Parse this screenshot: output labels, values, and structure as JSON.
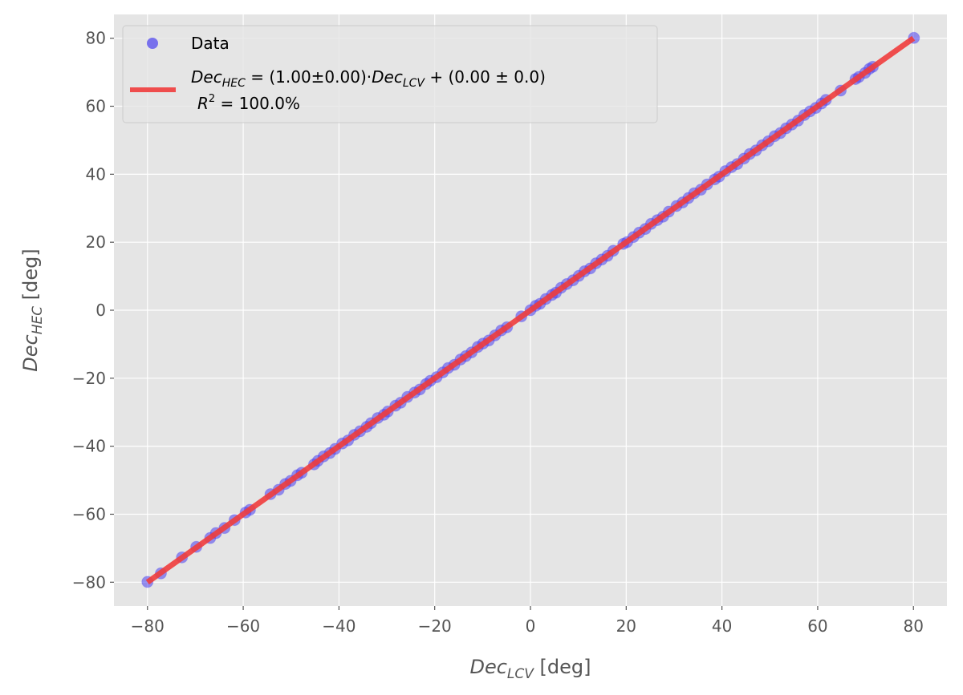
{
  "chart_data": {
    "type": "scatter",
    "xlabel": {
      "var": "Dec",
      "sub": "LCV",
      "unit": "[deg]"
    },
    "ylabel": {
      "var": "Dec",
      "sub": "HEC",
      "unit": "[deg]"
    },
    "xlim": [
      -87,
      87
    ],
    "ylim": [
      -87,
      87
    ],
    "xticks": [
      -80,
      -60,
      -40,
      -20,
      0,
      20,
      40,
      60,
      80
    ],
    "yticks": [
      -80,
      -60,
      -40,
      -20,
      0,
      20,
      40,
      60,
      80
    ],
    "grid": true,
    "legend_position": "top-left",
    "legend": {
      "data_label": "Data",
      "fit_line1": {
        "a": "Dec",
        "a_sub": "HEC",
        "eq": " = (1.00±0.00)·",
        "b": "Dec",
        "b_sub": "LCV",
        "rest": " + (0.00 ± 0.0)"
      },
      "fit_line2": {
        "r": "R",
        "sup": "2",
        "rest": " = 100.0%"
      }
    },
    "fit": {
      "slope": 1.0,
      "intercept": 0.0,
      "x_range": [
        -80,
        80
      ],
      "color": "#f03c3c"
    },
    "scatter_color": "#4a40f0",
    "points_x": [
      -80.0,
      -77.2,
      -72.8,
      -69.8,
      -66.9,
      -65.7,
      -63.9,
      -61.8,
      -59.5,
      -58.6,
      -54.3,
      -52.6,
      -51.2,
      -50.1,
      -48.7,
      -47.8,
      -45.2,
      -44.4,
      -43.2,
      -41.9,
      -40.8,
      -39.3,
      -38.1,
      -36.8,
      -35.6,
      -34.2,
      -33.3,
      -31.9,
      -30.6,
      -29.8,
      -28.2,
      -27.1,
      -25.7,
      -24.2,
      -23.1,
      -21.8,
      -20.9,
      -19.6,
      -18.3,
      -17.2,
      -15.9,
      -14.6,
      -13.5,
      -12.3,
      -11.0,
      -9.9,
      -8.7,
      -7.4,
      -6.1,
      -4.9,
      -1.9,
      0.0,
      1.1,
      2.0,
      3.2,
      4.5,
      5.3,
      6.4,
      7.6,
      8.9,
      10.1,
      11.3,
      12.5,
      13.7,
      14.9,
      16.1,
      17.3,
      19.4,
      20.2,
      21.5,
      22.7,
      24.0,
      25.2,
      26.5,
      27.7,
      28.9,
      30.5,
      31.8,
      33.0,
      34.2,
      35.6,
      36.9,
      38.5,
      39.4,
      40.7,
      42.0,
      43.2,
      44.6,
      45.8,
      47.1,
      48.4,
      49.7,
      51.0,
      52.2,
      53.4,
      54.6,
      55.9,
      57.2,
      58.4,
      59.6,
      60.8,
      61.7,
      64.8,
      67.9,
      68.6,
      69.9,
      70.8,
      71.5,
      80.1
    ],
    "point_offsets": [
      0.1,
      -0.2,
      0.1,
      0.2,
      -0.1,
      0.15,
      -0.15,
      0.1,
      0.0,
      -0.1,
      0.2,
      -0.2,
      0.1,
      -0.1,
      0.15,
      0.0,
      -0.15,
      0.1,
      0.2,
      -0.1,
      0.0,
      0.1,
      -0.2,
      0.15,
      0.0,
      -0.1,
      0.1,
      0.2,
      -0.15,
      0.0,
      0.1,
      -0.1,
      0.2,
      0.0,
      -0.2,
      0.1,
      0.15,
      -0.1,
      0.0,
      0.2,
      -0.15,
      0.1,
      0.0,
      -0.1,
      0.2,
      0.1,
      -0.2,
      0.0,
      0.15,
      -0.1,
      0.1,
      0.0,
      0.2,
      -0.1,
      0.1,
      0.0,
      -0.15,
      0.2,
      0.1,
      -0.1,
      0.0,
      0.15,
      -0.2,
      0.1,
      0.0,
      -0.1,
      0.2,
      0.1,
      -0.15,
      0.0,
      0.1,
      -0.1,
      0.2,
      0.0,
      -0.2,
      0.1,
      0.15,
      -0.1,
      0.0,
      0.2,
      -0.15,
      0.1,
      0.0,
      -0.1,
      0.2,
      0.1,
      -0.2,
      0.0,
      0.15,
      -0.1,
      0.1,
      0.0,
      0.2,
      -0.1,
      0.1,
      0.0,
      -0.15,
      0.2,
      0.1,
      -0.1,
      0.0,
      0.15,
      -0.2,
      0.1,
      0.0,
      -0.1,
      0.2,
      0.1,
      0.0
    ]
  }
}
